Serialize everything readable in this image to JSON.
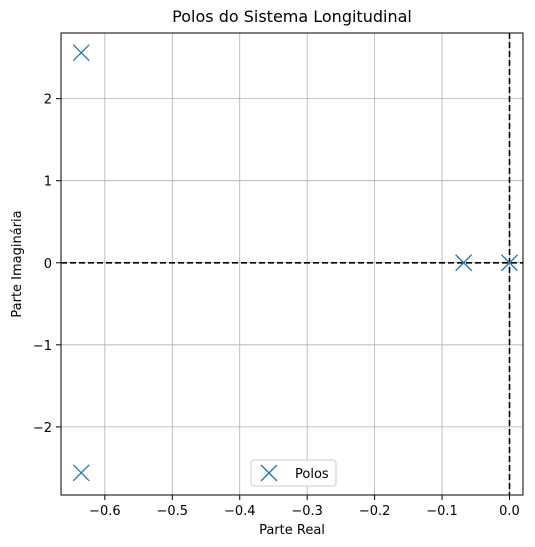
{
  "chart_data": {
    "type": "scatter",
    "title": "Polos do Sistema Longitudinal",
    "xlabel": "Parte Real",
    "ylabel": "Parte Imaginária",
    "xlim": [
      -0.665,
      0.02
    ],
    "ylim": [
      -2.83,
      2.8
    ],
    "xticks": [
      -0.6,
      -0.5,
      -0.4,
      -0.3,
      -0.2,
      -0.1,
      0.0
    ],
    "xtick_labels": [
      "−0.6",
      "−0.5",
      "−0.4",
      "−0.3",
      "−0.2",
      "−0.1",
      "0.0"
    ],
    "yticks": [
      2,
      1,
      0,
      -1,
      -2
    ],
    "ytick_labels": [
      "2",
      "1",
      "0",
      "−1",
      "−2"
    ],
    "grid": true,
    "reference_lines": [
      {
        "orientation": "horizontal",
        "value": 0,
        "style": "dashed",
        "color": "#000000"
      },
      {
        "orientation": "vertical",
        "value": 0,
        "style": "dashed",
        "color": "#000000"
      }
    ],
    "series": [
      {
        "name": "Polos",
        "marker": "x",
        "color": "#1f77b4",
        "points": [
          {
            "x": -0.635,
            "y": 2.56
          },
          {
            "x": -0.635,
            "y": -2.56
          },
          {
            "x": -0.068,
            "y": 0.0
          },
          {
            "x": 0.0,
            "y": 0.0
          }
        ]
      }
    ],
    "legend": {
      "position": "lower center",
      "entries": [
        "Polos"
      ]
    }
  }
}
